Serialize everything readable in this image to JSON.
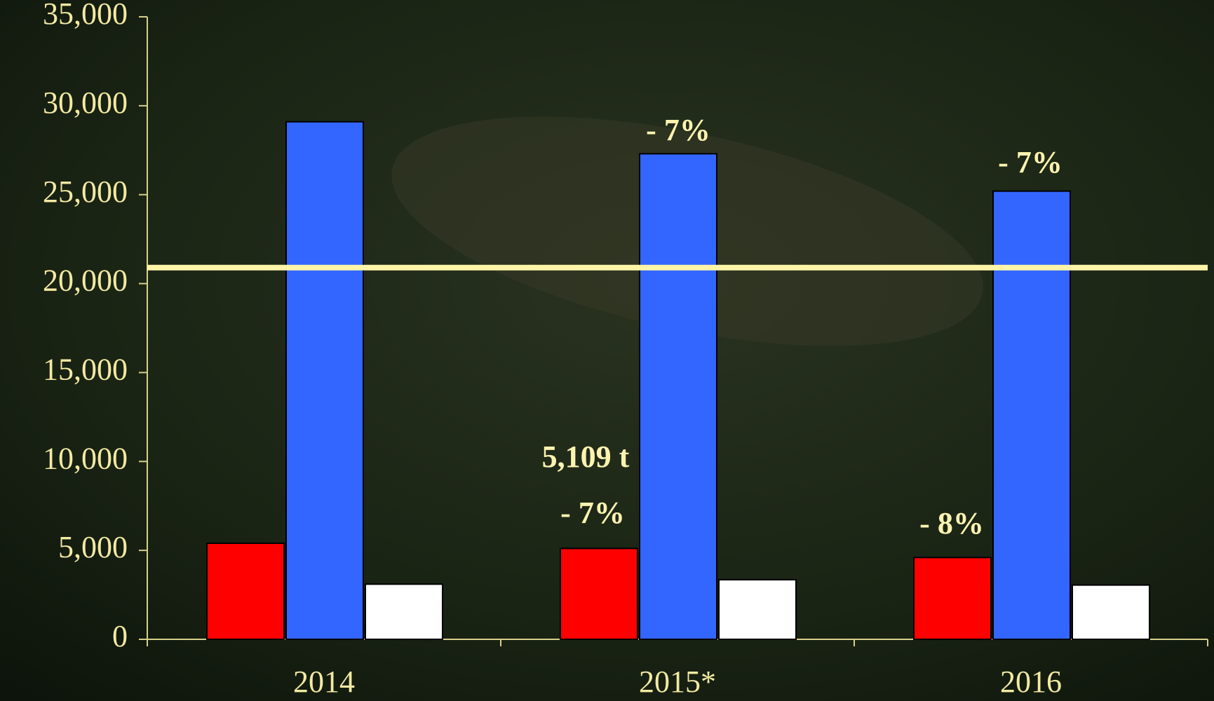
{
  "chart_data": {
    "type": "bar",
    "categories": [
      "2014",
      "2015*",
      "2016"
    ],
    "series": [
      {
        "color": "#ff0000",
        "values": [
          5400,
          5109,
          4600
        ]
      },
      {
        "color": "#3366ff",
        "values": [
          29100,
          27300,
          25200
        ]
      },
      {
        "color": "#ffffff",
        "values": [
          3100,
          3350,
          3050
        ]
      }
    ],
    "ylim": [
      0,
      35000
    ],
    "yticks": [
      0,
      {
        "value": 5000,
        "label": "5,000"
      },
      {
        "value": 10000,
        "label": "10,000"
      },
      {
        "value": 15000,
        "label": "15,000"
      },
      {
        "value": 20000,
        "label": "20,000"
      },
      {
        "value": 25000,
        "label": "25,000"
      },
      {
        "value": 30000,
        "label": "30,000"
      },
      {
        "value": 35000,
        "label": "35,000"
      }
    ],
    "reference_line": {
      "value": 20900,
      "color": "#fff5a8"
    },
    "annotations": [
      "- 7%",
      "- 7%",
      "5,109 t",
      "- 7%",
      "- 8%"
    ]
  }
}
